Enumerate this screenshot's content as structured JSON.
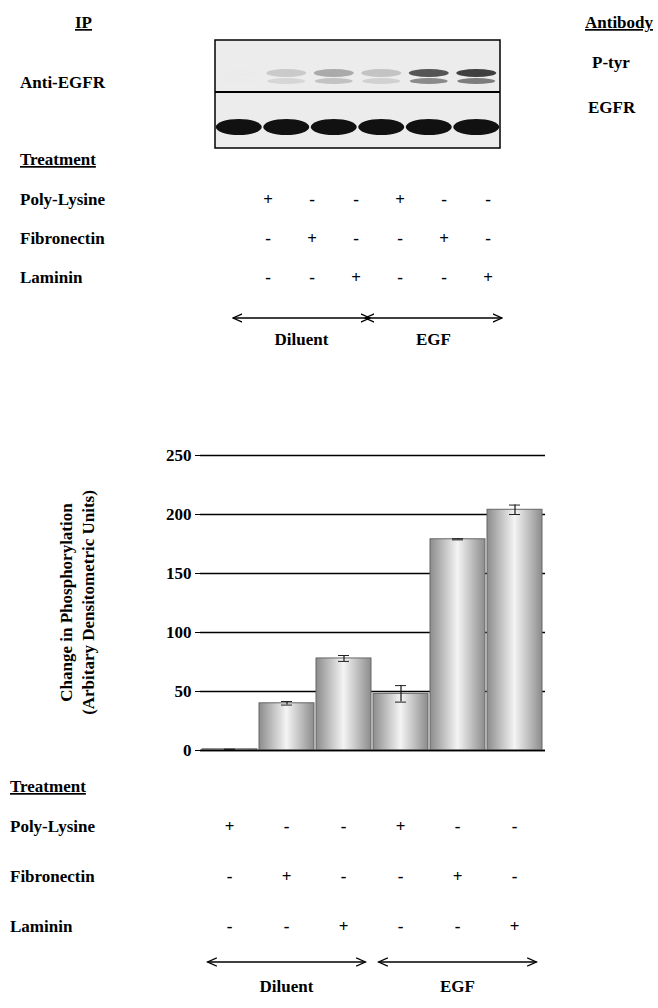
{
  "blot": {
    "ip_header": "IP",
    "ip": "Anti-EGFR",
    "antibody_header": "Antibody",
    "antibodies": [
      "P-tyr",
      "EGFR"
    ],
    "treatment_header": "Treatment",
    "treatments": [
      {
        "name": "Poly-Lysine",
        "values": [
          "+",
          "-",
          "-",
          "+",
          "-",
          "-"
        ]
      },
      {
        "name": "Fibronectin",
        "values": [
          "-",
          "+",
          "-",
          "-",
          "+",
          "-"
        ]
      },
      {
        "name": "Laminin",
        "values": [
          "-",
          "-",
          "+",
          "-",
          "-",
          "+"
        ]
      }
    ],
    "groups": [
      {
        "label": "Diluent",
        "from": 0,
        "to": 2
      },
      {
        "label": "EGF",
        "from": 3,
        "to": 5
      }
    ]
  },
  "chart_data": {
    "type": "bar",
    "ylabel": [
      "Change in Phosphorylation",
      "(Arbitary Densitometric Units)"
    ],
    "categories": [
      null,
      null,
      null,
      null,
      null,
      null
    ],
    "values": [
      1,
      40,
      78,
      48,
      179,
      204
    ],
    "errors": [
      0,
      1.5,
      2.5,
      7,
      0.5,
      4
    ],
    "color": "#8c8c8c",
    "ylim": [
      0,
      250
    ],
    "yticks": [
      0,
      50,
      100,
      150,
      200,
      250
    ],
    "grid": true,
    "treatment_header": "Treatment",
    "treatments": [
      {
        "name": "Poly-Lysine",
        "values": [
          "+",
          "-",
          "-",
          "+",
          "-",
          "-"
        ]
      },
      {
        "name": "Fibronectin",
        "values": [
          "-",
          "+",
          "-",
          "-",
          "+",
          "-"
        ]
      },
      {
        "name": "Laminin",
        "values": [
          "-",
          "-",
          "+",
          "-",
          "-",
          "+"
        ]
      }
    ],
    "groups": [
      {
        "label": "Diluent",
        "from": 0,
        "to": 2
      },
      {
        "label": "EGF",
        "from": 3,
        "to": 5
      }
    ]
  }
}
